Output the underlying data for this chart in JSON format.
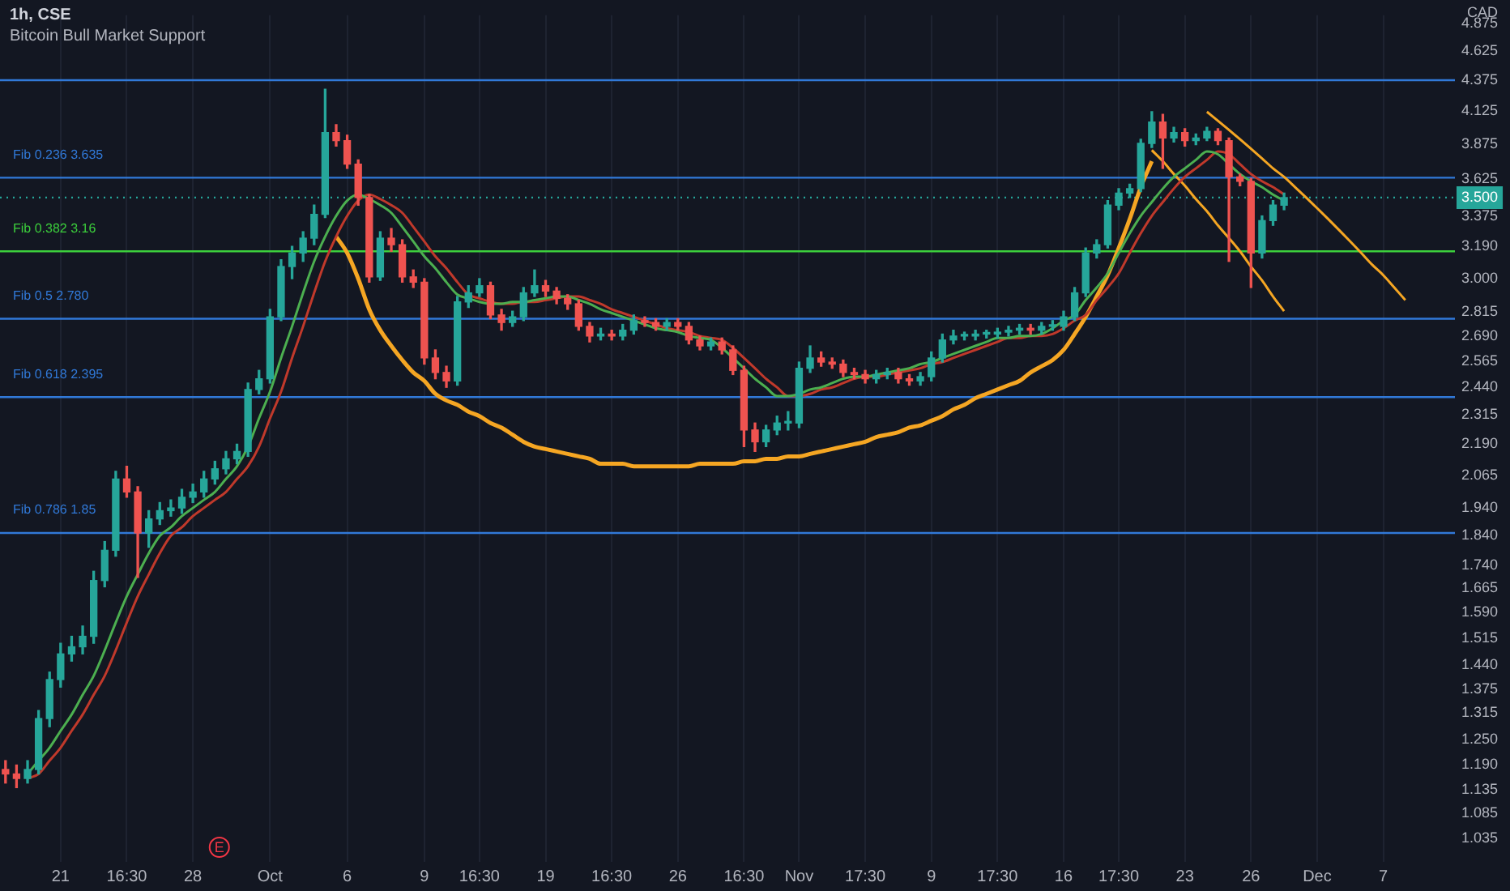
{
  "chart_data": {
    "type": "candlestick",
    "title": "1h, CSE",
    "subtitle": "Bitcoin Bull Market Support",
    "categories": [
      null,
      null,
      null,
      null,
      null,
      "21",
      null,
      null,
      null,
      null,
      null,
      "16:30",
      null,
      null,
      null,
      null,
      null,
      "28",
      null,
      null,
      null,
      null,
      null,
      null,
      "Oct",
      null,
      null,
      null,
      null,
      null,
      null,
      "6",
      null,
      null,
      null,
      null,
      null,
      null,
      "9",
      null,
      null,
      null,
      null,
      "16:30",
      null,
      null,
      null,
      null,
      null,
      "19",
      null,
      null,
      null,
      null,
      null,
      "16:30",
      null,
      null,
      null,
      null,
      null,
      "26",
      null,
      null,
      null,
      null,
      null,
      "16:30",
      null,
      null,
      null,
      null,
      "Nov",
      null,
      null,
      null,
      null,
      null,
      "17:30",
      null,
      null,
      null,
      null,
      null,
      "9",
      null,
      null,
      null,
      null,
      null,
      "17:30",
      null,
      null,
      null,
      null,
      null,
      "16",
      null,
      null,
      null,
      null,
      "17:30",
      null,
      null,
      null,
      null,
      null,
      "23",
      null,
      null,
      null,
      null,
      null,
      "26",
      null,
      null,
      null,
      null,
      null,
      "Dec",
      null,
      null,
      null,
      null,
      null,
      "7",
      null,
      null,
      null,
      null,
      null,
      null
    ],
    "ohlc": [
      [
        1.18,
        1.2,
        1.15,
        1.17
      ],
      [
        1.17,
        1.19,
        1.14,
        1.16
      ],
      [
        1.16,
        1.2,
        1.15,
        1.18
      ],
      [
        1.18,
        1.32,
        1.17,
        1.3
      ],
      [
        1.3,
        1.42,
        1.28,
        1.4
      ],
      [
        1.4,
        1.5,
        1.38,
        1.47
      ],
      [
        1.47,
        1.52,
        1.45,
        1.49
      ],
      [
        1.49,
        1.55,
        1.47,
        1.52
      ],
      [
        1.52,
        1.72,
        1.5,
        1.69
      ],
      [
        1.69,
        1.82,
        1.67,
        1.79
      ],
      [
        1.79,
        2.08,
        1.77,
        2.05
      ],
      [
        2.05,
        2.1,
        1.98,
        2.0
      ],
      [
        2.0,
        2.02,
        1.7,
        1.85
      ],
      [
        1.85,
        1.93,
        1.8,
        1.9
      ],
      [
        1.9,
        1.96,
        1.88,
        1.93
      ],
      [
        1.93,
        1.97,
        1.91,
        1.94
      ],
      [
        1.94,
        2.01,
        1.92,
        1.98
      ],
      [
        1.98,
        2.03,
        1.96,
        2.0
      ],
      [
        2.0,
        2.08,
        1.98,
        2.05
      ],
      [
        2.05,
        2.12,
        2.03,
        2.09
      ],
      [
        2.09,
        2.16,
        2.07,
        2.13
      ],
      [
        2.13,
        2.19,
        2.11,
        2.16
      ],
      [
        2.16,
        2.46,
        2.14,
        2.43
      ],
      [
        2.43,
        2.52,
        2.41,
        2.48
      ],
      [
        2.48,
        2.83,
        2.46,
        2.79
      ],
      [
        2.79,
        3.11,
        2.77,
        3.07
      ],
      [
        3.07,
        3.19,
        3.0,
        3.15
      ],
      [
        3.15,
        3.28,
        3.1,
        3.24
      ],
      [
        3.24,
        3.45,
        3.2,
        3.39
      ],
      [
        3.39,
        4.3,
        3.37,
        3.96
      ],
      [
        3.96,
        4.02,
        3.86,
        3.9
      ],
      [
        3.9,
        3.94,
        3.7,
        3.73
      ],
      [
        3.73,
        3.76,
        3.45,
        3.5
      ],
      [
        3.5,
        3.52,
        2.98,
        3.01
      ],
      [
        3.01,
        3.28,
        2.99,
        3.24
      ],
      [
        3.24,
        3.3,
        3.16,
        3.2
      ],
      [
        3.2,
        3.23,
        2.98,
        3.01
      ],
      [
        3.01,
        3.05,
        2.95,
        2.98
      ],
      [
        2.98,
        3.0,
        2.55,
        2.58
      ],
      [
        2.58,
        2.62,
        2.48,
        2.51
      ],
      [
        2.51,
        2.54,
        2.44,
        2.47
      ],
      [
        2.47,
        2.9,
        2.45,
        2.87
      ],
      [
        2.87,
        2.96,
        2.84,
        2.92
      ],
      [
        2.92,
        3.0,
        2.9,
        2.96
      ],
      [
        2.96,
        2.98,
        2.78,
        2.8
      ],
      [
        2.8,
        2.83,
        2.72,
        2.76
      ],
      [
        2.76,
        2.82,
        2.74,
        2.79
      ],
      [
        2.79,
        2.95,
        2.77,
        2.92
      ],
      [
        2.92,
        3.05,
        2.9,
        2.96
      ],
      [
        2.96,
        2.99,
        2.9,
        2.93
      ],
      [
        2.93,
        2.95,
        2.86,
        2.89
      ],
      [
        2.89,
        2.91,
        2.83,
        2.86
      ],
      [
        2.86,
        2.88,
        2.72,
        2.74
      ],
      [
        2.74,
        2.76,
        2.66,
        2.69
      ],
      [
        2.69,
        2.73,
        2.67,
        2.7
      ],
      [
        2.7,
        2.72,
        2.67,
        2.69
      ],
      [
        2.69,
        2.75,
        2.67,
        2.72
      ],
      [
        2.72,
        2.8,
        2.7,
        2.77
      ],
      [
        2.77,
        2.79,
        2.74,
        2.76
      ],
      [
        2.76,
        2.78,
        2.72,
        2.74
      ],
      [
        2.74,
        2.78,
        2.72,
        2.76
      ],
      [
        2.76,
        2.78,
        2.72,
        2.74
      ],
      [
        2.74,
        2.76,
        2.65,
        2.67
      ],
      [
        2.67,
        2.69,
        2.62,
        2.64
      ],
      [
        2.64,
        2.68,
        2.62,
        2.66
      ],
      [
        2.66,
        2.68,
        2.6,
        2.62
      ],
      [
        2.62,
        2.64,
        2.5,
        2.52
      ],
      [
        2.52,
        2.54,
        2.18,
        2.25
      ],
      [
        2.25,
        2.28,
        2.16,
        2.2
      ],
      [
        2.2,
        2.27,
        2.18,
        2.25
      ],
      [
        2.25,
        2.31,
        2.23,
        2.28
      ],
      [
        2.28,
        2.33,
        2.25,
        2.28
      ],
      [
        2.28,
        2.56,
        2.26,
        2.53
      ],
      [
        2.53,
        2.64,
        2.51,
        2.58
      ],
      [
        2.58,
        2.61,
        2.54,
        2.56
      ],
      [
        2.56,
        2.58,
        2.53,
        2.55
      ],
      [
        2.55,
        2.57,
        2.49,
        2.51
      ],
      [
        2.51,
        2.53,
        2.48,
        2.5
      ],
      [
        2.5,
        2.52,
        2.46,
        2.48
      ],
      [
        2.48,
        2.52,
        2.46,
        2.5
      ],
      [
        2.5,
        2.53,
        2.48,
        2.51
      ],
      [
        2.51,
        2.53,
        2.46,
        2.48
      ],
      [
        2.48,
        2.5,
        2.45,
        2.47
      ],
      [
        2.47,
        2.51,
        2.45,
        2.49
      ],
      [
        2.49,
        2.61,
        2.47,
        2.58
      ],
      [
        2.58,
        2.7,
        2.56,
        2.67
      ],
      [
        2.67,
        2.72,
        2.65,
        2.69
      ],
      [
        2.69,
        2.71,
        2.67,
        2.69
      ],
      [
        2.69,
        2.72,
        2.67,
        2.7
      ],
      [
        2.7,
        2.72,
        2.68,
        2.7
      ],
      [
        2.7,
        2.73,
        2.68,
        2.71
      ],
      [
        2.71,
        2.74,
        2.69,
        2.72
      ],
      [
        2.72,
        2.75,
        2.7,
        2.73
      ],
      [
        2.73,
        2.75,
        2.7,
        2.72
      ],
      [
        2.72,
        2.76,
        2.7,
        2.74
      ],
      [
        2.74,
        2.77,
        2.72,
        2.74
      ],
      [
        2.74,
        2.82,
        2.72,
        2.79
      ],
      [
        2.79,
        2.95,
        2.77,
        2.92
      ],
      [
        2.92,
        3.18,
        2.9,
        3.15
      ],
      [
        3.15,
        3.23,
        3.12,
        3.2
      ],
      [
        3.2,
        3.48,
        3.18,
        3.45
      ],
      [
        3.45,
        3.56,
        3.42,
        3.53
      ],
      [
        3.53,
        3.59,
        3.5,
        3.56
      ],
      [
        3.56,
        3.91,
        3.54,
        3.88
      ],
      [
        3.88,
        4.12,
        3.85,
        4.04
      ],
      [
        4.04,
        4.1,
        3.7,
        3.92
      ],
      [
        3.92,
        4.0,
        3.89,
        3.96
      ],
      [
        3.96,
        3.99,
        3.86,
        3.9
      ],
      [
        3.9,
        3.95,
        3.87,
        3.92
      ],
      [
        3.92,
        4.0,
        3.9,
        3.97
      ],
      [
        3.97,
        3.99,
        3.87,
        3.9
      ],
      [
        3.9,
        3.92,
        3.1,
        3.64
      ],
      [
        3.64,
        3.66,
        3.58,
        3.61
      ],
      [
        3.61,
        3.63,
        2.95,
        3.15
      ],
      [
        3.15,
        3.38,
        3.12,
        3.35
      ],
      [
        3.35,
        3.48,
        3.32,
        3.45
      ],
      [
        3.45,
        3.53,
        3.42,
        3.5
      ],
      null,
      null,
      null,
      null,
      null,
      null,
      null,
      null,
      null,
      null,
      null,
      null,
      null,
      null,
      null
    ],
    "colors": [
      "#ef5350",
      "#ef5350",
      "#26a69a",
      "#26a69a",
      "#26a69a",
      "#26a69a",
      "#26a69a",
      "#26a69a",
      "#26a69a",
      "#26a69a",
      "#26a69a",
      "#ef5350",
      "#ef5350",
      "#26a69a",
      "#26a69a",
      "#26a69a",
      "#26a69a",
      "#26a69a",
      "#26a69a",
      "#26a69a",
      "#26a69a",
      "#26a69a",
      "#26a69a",
      "#26a69a",
      "#26a69a",
      "#26a69a",
      "#26a69a",
      "#26a69a",
      "#26a69a",
      "#26a69a",
      "#ef5350",
      "#ef5350",
      "#ef5350",
      "#ef5350",
      "#26a69a",
      "#ef5350",
      "#ef5350",
      "#ef5350",
      "#ef5350",
      "#ef5350",
      "#ef5350",
      "#26a69a",
      "#26a69a",
      "#26a69a",
      "#ef5350",
      "#ef5350",
      "#26a69a",
      "#26a69a",
      "#26a69a",
      "#ef5350",
      "#ef5350",
      "#ef5350",
      "#ef5350",
      "#ef5350",
      "#26a69a",
      "#ef5350",
      "#26a69a",
      "#26a69a",
      "#ef5350",
      "#ef5350",
      "#26a69a",
      "#ef5350",
      "#ef5350",
      "#ef5350",
      "#26a69a",
      "#ef5350",
      "#ef5350",
      "#ef5350",
      "#ef5350",
      "#26a69a",
      "#26a69a",
      "#26a69a",
      "#26a69a",
      "#26a69a",
      "#ef5350",
      "#ef5350",
      "#ef5350",
      "#ef5350",
      "#ef5350",
      "#26a69a",
      "#26a69a",
      "#ef5350",
      "#ef5350",
      "#26a69a",
      "#26a69a",
      "#26a69a",
      "#26a69a",
      "#26a69a",
      "#26a69a",
      "#26a69a",
      "#26a69a",
      "#26a69a",
      "#26a69a",
      "#ef5350",
      "#26a69a",
      "#26a69a",
      "#26a69a",
      "#26a69a",
      "#26a69a",
      "#26a69a",
      "#26a69a",
      "#26a69a",
      "#26a69a",
      "#26a69a",
      "#26a69a",
      "#ef5350",
      "#26a69a",
      "#ef5350",
      "#26a69a",
      "#26a69a",
      "#ef5350",
      "#ef5350",
      "#ef5350",
      "#ef5350",
      "#26a69a",
      "#26a69a",
      "#26a69a",
      null,
      null,
      null,
      null,
      null,
      null,
      null,
      null,
      null,
      null,
      null,
      null,
      null,
      null,
      null
    ],
    "series": [
      {
        "type": "line",
        "color": "#4caf50",
        "values": [
          null,
          null,
          1.17,
          1.2,
          1.23,
          1.27,
          1.31,
          1.36,
          1.41,
          1.48,
          1.56,
          1.64,
          1.71,
          1.78,
          1.84,
          1.87,
          1.91,
          1.94,
          1.97,
          2.0,
          2.05,
          2.1,
          2.18,
          2.3,
          2.42,
          2.58,
          2.74,
          2.92,
          3.1,
          3.25,
          3.38,
          3.48,
          3.52,
          3.49,
          3.45,
          3.4,
          3.31,
          3.22,
          3.13,
          3.06,
          2.98,
          2.91,
          2.89,
          2.87,
          2.86,
          2.86,
          2.87,
          2.87,
          2.88,
          2.89,
          2.9,
          2.9,
          2.88,
          2.86,
          2.83,
          2.81,
          2.79,
          2.77,
          2.75,
          2.73,
          2.72,
          2.71,
          2.69,
          2.68,
          2.67,
          2.63,
          2.58,
          2.53,
          2.48,
          2.44,
          2.4,
          2.4,
          2.41,
          2.43,
          2.44,
          2.46,
          2.48,
          2.49,
          2.49,
          2.5,
          2.51,
          2.52,
          2.53,
          2.55,
          2.56,
          2.58,
          2.6,
          2.62,
          2.64,
          2.66,
          2.68,
          2.68,
          2.69,
          2.69,
          2.7,
          2.73,
          2.77,
          2.8,
          2.88,
          2.95,
          3.03,
          3.15,
          3.27,
          3.38,
          3.47,
          3.56,
          3.64,
          3.7,
          3.76,
          3.82,
          3.8,
          3.73,
          3.66,
          3.61,
          3.57,
          3.52,
          3.48,
          null,
          null,
          null,
          null,
          null,
          null,
          null,
          null,
          null,
          null,
          null,
          null,
          null,
          null,
          null
        ]
      },
      {
        "type": "line",
        "color": "#c0392b",
        "values": [
          null,
          null,
          1.16,
          1.17,
          1.2,
          1.23,
          1.27,
          1.31,
          1.36,
          1.41,
          1.48,
          1.56,
          1.64,
          1.71,
          1.78,
          1.84,
          1.87,
          1.91,
          1.94,
          1.97,
          2.0,
          2.05,
          2.1,
          2.18,
          2.3,
          2.42,
          2.58,
          2.74,
          2.92,
          3.1,
          3.25,
          3.38,
          3.48,
          3.52,
          3.49,
          3.45,
          3.4,
          3.31,
          3.22,
          3.13,
          3.06,
          2.98,
          2.91,
          2.89,
          2.87,
          2.86,
          2.86,
          2.87,
          2.87,
          2.88,
          2.89,
          2.9,
          2.9,
          2.88,
          2.86,
          2.83,
          2.81,
          2.79,
          2.77,
          2.75,
          2.73,
          2.72,
          2.71,
          2.69,
          2.68,
          2.67,
          2.63,
          2.58,
          2.53,
          2.48,
          2.44,
          2.4,
          2.4,
          2.41,
          2.43,
          2.44,
          2.46,
          2.48,
          2.49,
          2.49,
          2.5,
          2.51,
          2.52,
          2.53,
          2.55,
          2.56,
          2.58,
          2.6,
          2.62,
          2.64,
          2.66,
          2.68,
          2.68,
          2.69,
          2.69,
          2.7,
          2.73,
          2.77,
          2.8,
          2.88,
          2.95,
          3.03,
          3.15,
          3.27,
          3.38,
          3.47,
          3.56,
          3.64,
          3.7,
          3.76,
          3.82,
          3.8,
          3.73,
          3.66,
          3.61,
          3.57,
          3.52,
          null,
          null,
          null,
          null,
          null,
          null,
          null,
          null,
          null,
          null,
          null,
          null,
          null,
          null,
          null
        ]
      },
      {
        "type": "line",
        "color": "#f5a623",
        "values": [
          null,
          null,
          null,
          null,
          null,
          null,
          null,
          null,
          null,
          null,
          null,
          null,
          null,
          null,
          null,
          null,
          null,
          null,
          null,
          null,
          null,
          null,
          null,
          null,
          null,
          null,
          null,
          null,
          null,
          null,
          3.25,
          3.15,
          3.0,
          2.83,
          2.72,
          2.64,
          2.57,
          2.51,
          2.47,
          2.41,
          2.38,
          2.36,
          2.33,
          2.31,
          2.28,
          2.26,
          2.23,
          2.2,
          2.18,
          2.17,
          2.16,
          2.15,
          2.14,
          2.13,
          2.11,
          2.11,
          2.11,
          2.1,
          2.1,
          2.1,
          2.1,
          2.1,
          2.1,
          2.11,
          2.11,
          2.11,
          2.11,
          2.12,
          2.12,
          2.13,
          2.13,
          2.14,
          2.14,
          2.15,
          2.16,
          2.17,
          2.18,
          2.19,
          2.2,
          2.22,
          2.23,
          2.24,
          2.26,
          2.27,
          2.29,
          2.31,
          2.34,
          2.36,
          2.39,
          2.41,
          2.43,
          2.45,
          2.47,
          2.51,
          2.54,
          2.57,
          2.62,
          2.7,
          2.79,
          2.9,
          3.02,
          3.18,
          3.36,
          3.57,
          3.75,
          null,
          null,
          null,
          null,
          null,
          null,
          null,
          null,
          null,
          null,
          null,
          null,
          null,
          null,
          null,
          null,
          null,
          null,
          null,
          null,
          null,
          null,
          null,
          null,
          null,
          null,
          null
        ]
      },
      {
        "type": "line",
        "color": "#f5a623",
        "values": [
          null,
          null,
          null,
          null,
          null,
          null,
          null,
          null,
          null,
          null,
          null,
          null,
          null,
          null,
          null,
          null,
          null,
          null,
          null,
          null,
          null,
          null,
          null,
          null,
          null,
          null,
          null,
          null,
          null,
          null,
          null,
          null,
          null,
          null,
          null,
          null,
          null,
          null,
          null,
          null,
          null,
          null,
          null,
          null,
          null,
          null,
          null,
          null,
          null,
          null,
          null,
          null,
          null,
          null,
          null,
          null,
          null,
          null,
          null,
          null,
          null,
          null,
          null,
          null,
          null,
          null,
          null,
          null,
          null,
          null,
          null,
          null,
          null,
          null,
          null,
          null,
          null,
          null,
          null,
          null,
          null,
          null,
          null,
          null,
          null,
          null,
          null,
          null,
          null,
          null,
          null,
          null,
          null,
          null,
          null,
          null,
          null,
          null,
          null,
          null,
          null,
          null,
          null,
          null,
          3.83,
          3.75,
          3.66,
          3.58,
          3.49,
          3.41,
          3.32,
          3.24,
          3.16,
          3.07,
          2.99,
          2.9,
          2.82,
          null,
          null,
          null,
          null,
          null,
          null,
          null,
          null,
          null,
          null,
          null,
          null,
          null,
          null,
          null
        ]
      },
      {
        "type": "line",
        "color": "#f5a623",
        "values": [
          null,
          null,
          null,
          null,
          null,
          null,
          null,
          null,
          null,
          null,
          null,
          null,
          null,
          null,
          null,
          null,
          null,
          null,
          null,
          null,
          null,
          null,
          null,
          null,
          null,
          null,
          null,
          null,
          null,
          null,
          null,
          null,
          null,
          null,
          null,
          null,
          null,
          null,
          null,
          null,
          null,
          null,
          null,
          null,
          null,
          null,
          null,
          null,
          null,
          null,
          null,
          null,
          null,
          null,
          null,
          null,
          null,
          null,
          null,
          null,
          null,
          null,
          null,
          null,
          null,
          null,
          null,
          null,
          null,
          null,
          null,
          null,
          null,
          null,
          null,
          null,
          null,
          null,
          null,
          null,
          null,
          null,
          null,
          null,
          null,
          null,
          null,
          null,
          null,
          null,
          null,
          null,
          null,
          null,
          null,
          null,
          null,
          null,
          null,
          null,
          null,
          null,
          null,
          null,
          null,
          null,
          null,
          null,
          null,
          4.12,
          4.05,
          3.98,
          3.91,
          3.84,
          3.77,
          3.7,
          3.64,
          3.57,
          3.5,
          3.43,
          3.36,
          3.29,
          3.22,
          3.15,
          3.08,
          3.02,
          2.95,
          2.88,
          null,
          null,
          null,
          null
        ]
      }
    ],
    "ylim": [
      0.99,
      4.95
    ],
    "log": "y",
    "yticks": [
      4.875,
      4.625,
      4.375,
      4.125,
      3.875,
      3.625,
      3.375,
      {
        "value": 3.19,
        "label": "3.190"
      },
      {
        "value": 3,
        "label": "3.000"
      },
      2.815,
      {
        "value": 2.69,
        "label": "2.690"
      },
      2.565,
      {
        "value": 2.44,
        "label": "2.440"
      },
      2.315,
      {
        "value": 2.19,
        "label": "2.190"
      },
      2.065,
      {
        "value": 1.94,
        "label": "1.940"
      },
      {
        "value": 1.84,
        "label": "1.840"
      },
      {
        "value": 1.74,
        "label": "1.740"
      },
      1.665,
      {
        "value": 1.59,
        "label": "1.590"
      },
      1.515,
      {
        "value": 1.44,
        "label": "1.440"
      },
      1.375,
      1.315,
      {
        "value": 1.25,
        "label": "1.250"
      },
      {
        "value": 1.19,
        "label": "1.190"
      },
      1.135,
      1.085,
      1.035
    ],
    "ref_lines": [
      {
        "axis": "y",
        "value": 4.375,
        "label": null,
        "color": "#3179d8"
      },
      {
        "axis": "y",
        "value": 3.635,
        "label": "Fib 0.236 3.635",
        "color": "#3179d8"
      },
      {
        "axis": "y",
        "value": 3.16,
        "label": "Fib 0.382 3.16",
        "color": "#3ccf3c"
      },
      {
        "axis": "y",
        "value": 2.78,
        "label": "Fib 0.5 2.780",
        "color": "#3179d8"
      },
      {
        "axis": "y",
        "value": 2.395,
        "label": "Fib 0.618 2.395",
        "color": "#3179d8"
      },
      {
        "axis": "y",
        "value": 1.85,
        "label": "Fib 0.786 1.85",
        "color": "#3179d8"
      },
      {
        "axis": "y",
        "value": 3.5,
        "label": "3.500",
        "color": "#26a69a",
        "line_style": "dotted"
      }
    ],
    "annotations": [
      "CAD",
      "E"
    ],
    "grid": "x",
    "legend": false
  }
}
